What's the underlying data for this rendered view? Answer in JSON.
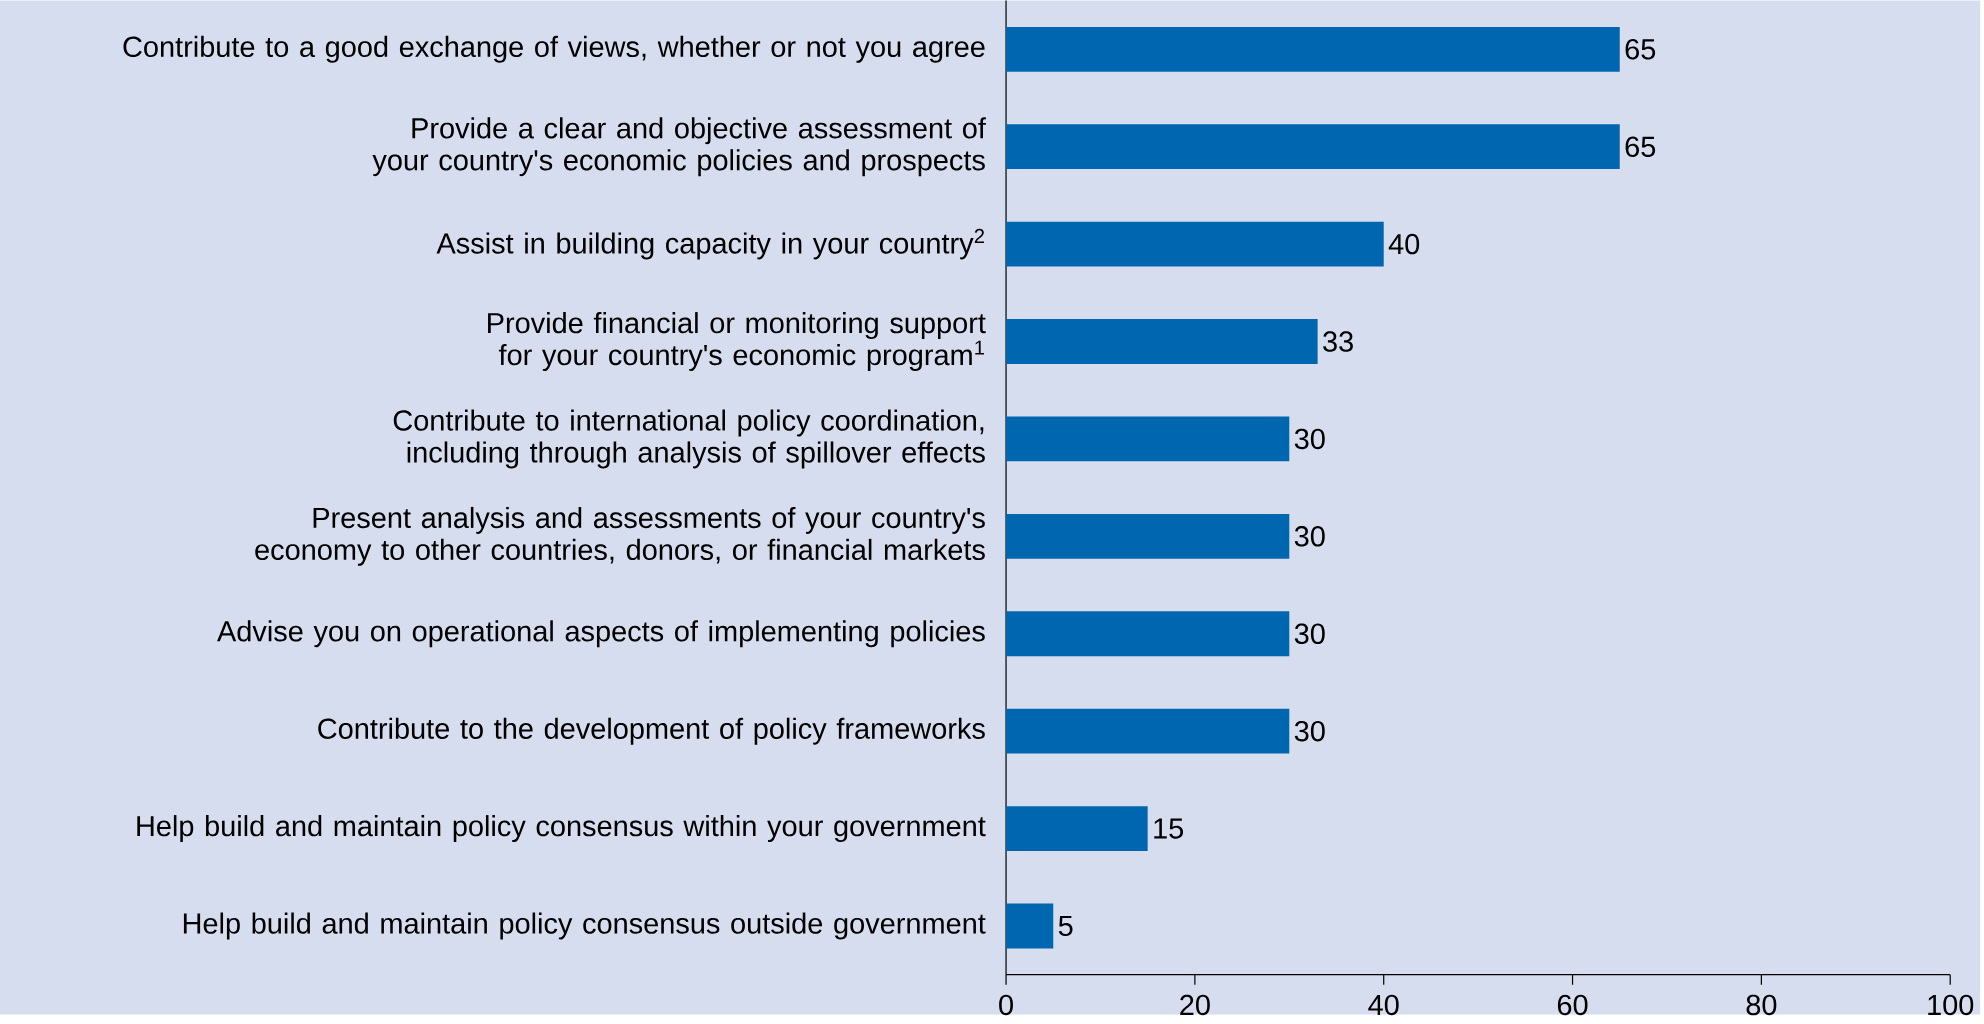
{
  "chart_data": {
    "type": "bar",
    "orientation": "horizontal",
    "categories": [
      "Contribute to a good exchange of views, whether or not you agree",
      "Provide a clear and objective assessment of your country's economic policies and prospects",
      "Assist in building capacity in your country$^{2}$",
      "Provide financial or monitoring support for your country's economic program$^{1}$",
      "Contribute to international policy coordination, including through analysis of spillover effects",
      "Present analysis and assessments of your country's economy to other countries, donors, or financial markets",
      "Advise you on operational aspects of implementing policies",
      "Contribute to the development of policy frameworks",
      "Help build and maintain policy consensus within your government",
      "Help build and maintain policy consensus outside government"
    ],
    "values": [
      65,
      65,
      40,
      33,
      30,
      30,
      30,
      30,
      15,
      5
    ],
    "color": "#0066b0",
    "xlim": [
      0,
      100
    ],
    "xticks": [
      0,
      20,
      40,
      60,
      80,
      100
    ],
    "data_labels": true
  }
}
